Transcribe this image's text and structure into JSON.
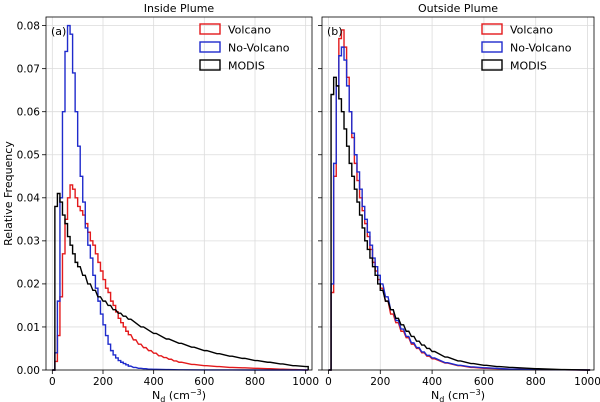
{
  "chart_data": [
    {
      "type": "histogram-step",
      "panel_label": "(a)",
      "title": "Inside Plume",
      "xlabel_main": "N",
      "xlabel_sub": "d",
      "xlabel_unit_open": " (cm",
      "xlabel_unit_exp": "−3",
      "xlabel_unit_close": ")",
      "ylabel": "Relative Frequency",
      "xlim": [
        -25,
        1025
      ],
      "ylim": [
        0,
        0.082
      ],
      "xticks": [
        0,
        200,
        400,
        600,
        800,
        1000
      ],
      "yticks": [
        0.0,
        0.01,
        0.02,
        0.03,
        0.04,
        0.05,
        0.06,
        0.07,
        0.08
      ],
      "ytick_labels": [
        "0.00",
        "0.01",
        "0.02",
        "0.03",
        "0.04",
        "0.05",
        "0.06",
        "0.07",
        "0.08"
      ],
      "grid": true,
      "legend_position": "top-right",
      "bin_width": 10,
      "series": [
        {
          "name": "Volcano",
          "color": "#e31a1c",
          "x": [
            0,
            10,
            20,
            30,
            40,
            50,
            60,
            70,
            80,
            90,
            100,
            110,
            120,
            130,
            140,
            150,
            160,
            170,
            180,
            190,
            200,
            210,
            220,
            230,
            240,
            250,
            260,
            270,
            280,
            290,
            300,
            320,
            340,
            360,
            380,
            400,
            420,
            440,
            460,
            480,
            500,
            550,
            600,
            650,
            700,
            750,
            800,
            850,
            900,
            950,
            1000
          ],
          "values": [
            0.0,
            0.002,
            0.008,
            0.017,
            0.027,
            0.035,
            0.04,
            0.043,
            0.042,
            0.04,
            0.038,
            0.037,
            0.036,
            0.034,
            0.032,
            0.03,
            0.029,
            0.027,
            0.025,
            0.023,
            0.021,
            0.019,
            0.018,
            0.016,
            0.015,
            0.0135,
            0.012,
            0.011,
            0.01,
            0.009,
            0.0082,
            0.007,
            0.006,
            0.0052,
            0.0045,
            0.0039,
            0.0033,
            0.0029,
            0.0025,
            0.0021,
            0.0018,
            0.0013,
            0.001,
            0.0008,
            0.0006,
            0.0005,
            0.0004,
            0.0003,
            0.0002,
            0.0001,
            0.0
          ]
        },
        {
          "name": "No-Volcano",
          "color": "#1f2bcc",
          "x": [
            0,
            10,
            20,
            30,
            40,
            50,
            60,
            70,
            80,
            90,
            100,
            110,
            120,
            130,
            140,
            150,
            160,
            170,
            180,
            190,
            200,
            210,
            220,
            230,
            240,
            250,
            260,
            270,
            280,
            290,
            300,
            320,
            340,
            360,
            380,
            400,
            450,
            500,
            600,
            700,
            800,
            900,
            1000
          ],
          "values": [
            0.0,
            0.004,
            0.016,
            0.04,
            0.06,
            0.074,
            0.08,
            0.078,
            0.069,
            0.06,
            0.052,
            0.045,
            0.039,
            0.033,
            0.029,
            0.026,
            0.022,
            0.019,
            0.016,
            0.013,
            0.0105,
            0.008,
            0.006,
            0.0045,
            0.0035,
            0.0028,
            0.0022,
            0.0018,
            0.0015,
            0.0012,
            0.0009,
            0.0006,
            0.0004,
            0.0003,
            0.0002,
            0.00015,
            0.0001,
            5e-05,
            2e-05,
            1e-05,
            0.0,
            0.0,
            0.0
          ]
        },
        {
          "name": "MODIS",
          "color": "#000000",
          "x": [
            0,
            10,
            20,
            30,
            40,
            50,
            60,
            70,
            80,
            90,
            100,
            120,
            140,
            160,
            180,
            200,
            220,
            240,
            260,
            280,
            300,
            350,
            400,
            450,
            500,
            550,
            600,
            650,
            700,
            750,
            800,
            850,
            900,
            950,
            1000
          ],
          "values": [
            0.0,
            0.038,
            0.041,
            0.039,
            0.036,
            0.034,
            0.031,
            0.029,
            0.027,
            0.025,
            0.024,
            0.022,
            0.02,
            0.0185,
            0.017,
            0.016,
            0.015,
            0.014,
            0.0132,
            0.0125,
            0.0118,
            0.01,
            0.0085,
            0.0072,
            0.0062,
            0.0053,
            0.0045,
            0.0038,
            0.0032,
            0.0027,
            0.0022,
            0.0018,
            0.0014,
            0.001,
            0.0008
          ]
        }
      ]
    },
    {
      "type": "histogram-step",
      "panel_label": "(b)",
      "title": "Outside Plume",
      "xlabel_main": "N",
      "xlabel_sub": "d",
      "xlabel_unit_open": " (cm",
      "xlabel_unit_exp": "−3",
      "xlabel_unit_close": ")",
      "ylabel": "",
      "xlim": [
        -25,
        1025
      ],
      "ylim": [
        0,
        0.082
      ],
      "xticks": [
        0,
        200,
        400,
        600,
        800,
        1000
      ],
      "yticks": [
        0.0,
        0.01,
        0.02,
        0.03,
        0.04,
        0.05,
        0.06,
        0.07,
        0.08
      ],
      "ytick_labels": [],
      "grid": true,
      "legend_position": "top-right",
      "bin_width": 10,
      "series": [
        {
          "name": "Volcano",
          "color": "#e31a1c",
          "x": [
            0,
            10,
            20,
            30,
            40,
            50,
            60,
            70,
            80,
            90,
            100,
            110,
            120,
            130,
            140,
            150,
            160,
            170,
            180,
            190,
            200,
            220,
            240,
            260,
            280,
            300,
            320,
            340,
            360,
            380,
            400,
            450,
            500,
            550,
            600,
            700,
            800,
            900,
            1000
          ],
          "values": [
            0.0,
            0.018,
            0.045,
            0.066,
            0.077,
            0.079,
            0.075,
            0.068,
            0.06,
            0.054,
            0.048,
            0.044,
            0.04,
            0.037,
            0.034,
            0.031,
            0.028,
            0.025,
            0.023,
            0.021,
            0.019,
            0.016,
            0.013,
            0.011,
            0.009,
            0.0075,
            0.006,
            0.005,
            0.004,
            0.0032,
            0.0026,
            0.0016,
            0.001,
            0.0006,
            0.0004,
            0.0002,
            0.0001,
            5e-05,
            0.0
          ]
        },
        {
          "name": "No-Volcano",
          "color": "#1f2bcc",
          "x": [
            0,
            10,
            20,
            30,
            40,
            50,
            60,
            70,
            80,
            90,
            100,
            110,
            120,
            130,
            140,
            150,
            160,
            170,
            180,
            190,
            200,
            220,
            240,
            260,
            280,
            300,
            320,
            340,
            360,
            380,
            400,
            450,
            500,
            550,
            600,
            700,
            800,
            900,
            1000
          ],
          "values": [
            0.0,
            0.02,
            0.048,
            0.066,
            0.073,
            0.075,
            0.072,
            0.066,
            0.06,
            0.055,
            0.05,
            0.046,
            0.042,
            0.038,
            0.035,
            0.032,
            0.029,
            0.026,
            0.024,
            0.022,
            0.02,
            0.017,
            0.014,
            0.0115,
            0.0095,
            0.0078,
            0.0063,
            0.0052,
            0.0042,
            0.0034,
            0.0028,
            0.0017,
            0.0011,
            0.0007,
            0.0005,
            0.0002,
            0.0001,
            5e-05,
            0.0
          ]
        },
        {
          "name": "MODIS",
          "color": "#000000",
          "x": [
            0,
            10,
            20,
            30,
            40,
            50,
            60,
            70,
            80,
            90,
            100,
            110,
            120,
            130,
            140,
            150,
            160,
            170,
            180,
            190,
            200,
            220,
            240,
            260,
            280,
            300,
            320,
            340,
            360,
            380,
            400,
            450,
            500,
            550,
            600,
            650,
            700,
            800,
            900,
            1000
          ],
          "values": [
            0.0,
            0.064,
            0.068,
            0.066,
            0.063,
            0.06,
            0.056,
            0.052,
            0.048,
            0.045,
            0.042,
            0.039,
            0.036,
            0.033,
            0.03,
            0.028,
            0.026,
            0.024,
            0.022,
            0.02,
            0.0185,
            0.016,
            0.014,
            0.012,
            0.0105,
            0.009,
            0.0078,
            0.0067,
            0.0058,
            0.005,
            0.0043,
            0.003,
            0.0021,
            0.0015,
            0.0011,
            0.0008,
            0.0006,
            0.0003,
            0.0001,
            0.0
          ]
        }
      ]
    }
  ]
}
